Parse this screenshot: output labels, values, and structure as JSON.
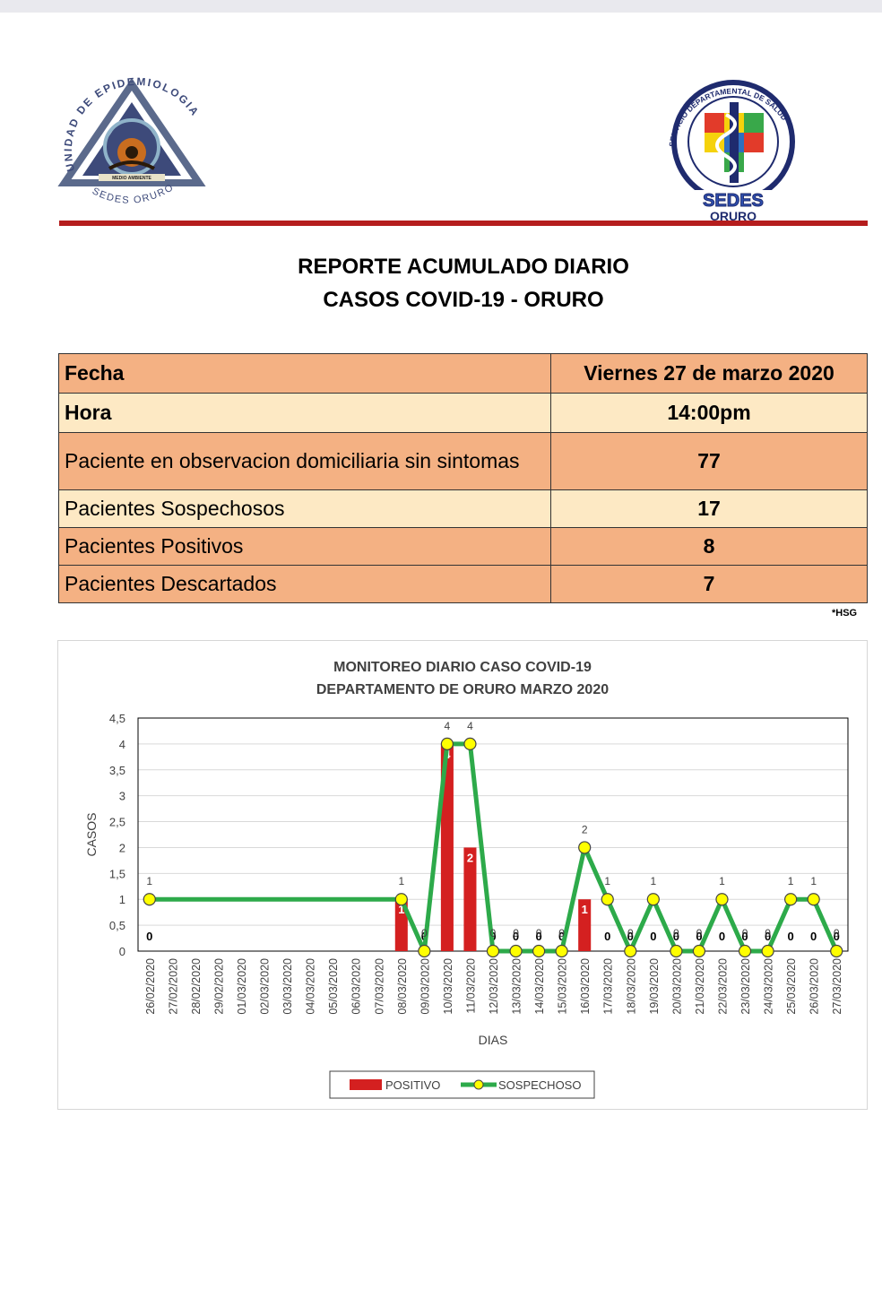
{
  "header": {
    "left_logo_text": [
      "UNIDAD",
      "DE",
      "EPIDEMIOLOGIA",
      "SEDES ORURO",
      "MEDIO AMBIENTE"
    ],
    "right_logo_text": [
      "SERVICIO DEPARTAMENTAL DE SALUD",
      "SEDES",
      "ORURO"
    ],
    "accent_color": "#b51d1d"
  },
  "report": {
    "title_line1": "REPORTE ACUMULADO DIARIO",
    "title_line2": "CASOS COVID-19 - ORURO"
  },
  "table": {
    "rows": [
      {
        "label": "Fecha",
        "value": "Viernes 27 de marzo 2020"
      },
      {
        "label": "Hora",
        "value": "14:00pm"
      },
      {
        "label": "Paciente en observacion domiciliaria sin sintomas",
        "value": "77"
      },
      {
        "label": "Pacientes Sospechosos",
        "value": "17"
      },
      {
        "label": "Pacientes Positivos",
        "value": "8"
      },
      {
        "label": "Pacientes Descartados",
        "value": "7"
      }
    ],
    "colors": {
      "dark": "#f4b183",
      "light": "#fde9c4"
    }
  },
  "footnote": "*HSG",
  "chart_data": {
    "type": "bar",
    "title": "MONITOREO DIARIO CASO COVID-19",
    "subtitle": "DEPARTAMENTO DE ORURO MARZO 2020",
    "xlabel": "DIAS",
    "ylabel": "CASOS",
    "ylim": [
      0,
      4.5
    ],
    "yticks": [
      "0",
      "0,5",
      "1",
      "1,5",
      "2",
      "2,5",
      "3",
      "3,5",
      "4",
      "4,5"
    ],
    "grid": true,
    "legend_position": "bottom",
    "categories": [
      "26/02/2020",
      "27/02/2020",
      "28/02/2020",
      "29/02/2020",
      "01/03/2020",
      "02/03/2020",
      "03/03/2020",
      "04/03/2020",
      "05/03/2020",
      "06/03/2020",
      "07/03/2020",
      "08/03/2020",
      "09/03/2020",
      "10/03/2020",
      "11/03/2020",
      "12/03/2020",
      "13/03/2020",
      "14/03/2020",
      "15/03/2020",
      "16/03/2020",
      "17/03/2020",
      "18/03/2020",
      "19/03/2020",
      "20/03/2020",
      "21/03/2020",
      "22/03/2020",
      "23/03/2020",
      "24/03/2020",
      "25/03/2020",
      "26/03/2020",
      "27/03/2020"
    ],
    "series": [
      {
        "name": "POSITIVO",
        "kind": "bar",
        "color": "#d42020",
        "values": [
          0,
          null,
          null,
          null,
          null,
          null,
          null,
          null,
          null,
          null,
          null,
          1,
          0,
          4,
          2,
          0,
          0,
          0,
          0,
          1,
          0,
          0,
          0,
          0,
          0,
          0,
          0,
          0,
          0,
          0,
          0
        ]
      },
      {
        "name": "SOSPECHOSO",
        "kind": "line",
        "color": "#2daa4a",
        "marker": "#ffff00",
        "values": [
          1,
          null,
          null,
          null,
          null,
          null,
          null,
          null,
          null,
          null,
          null,
          1,
          0,
          4,
          4,
          0,
          0,
          0,
          0,
          2,
          1,
          0,
          1,
          0,
          0,
          1,
          0,
          0,
          1,
          1,
          0
        ]
      }
    ]
  }
}
